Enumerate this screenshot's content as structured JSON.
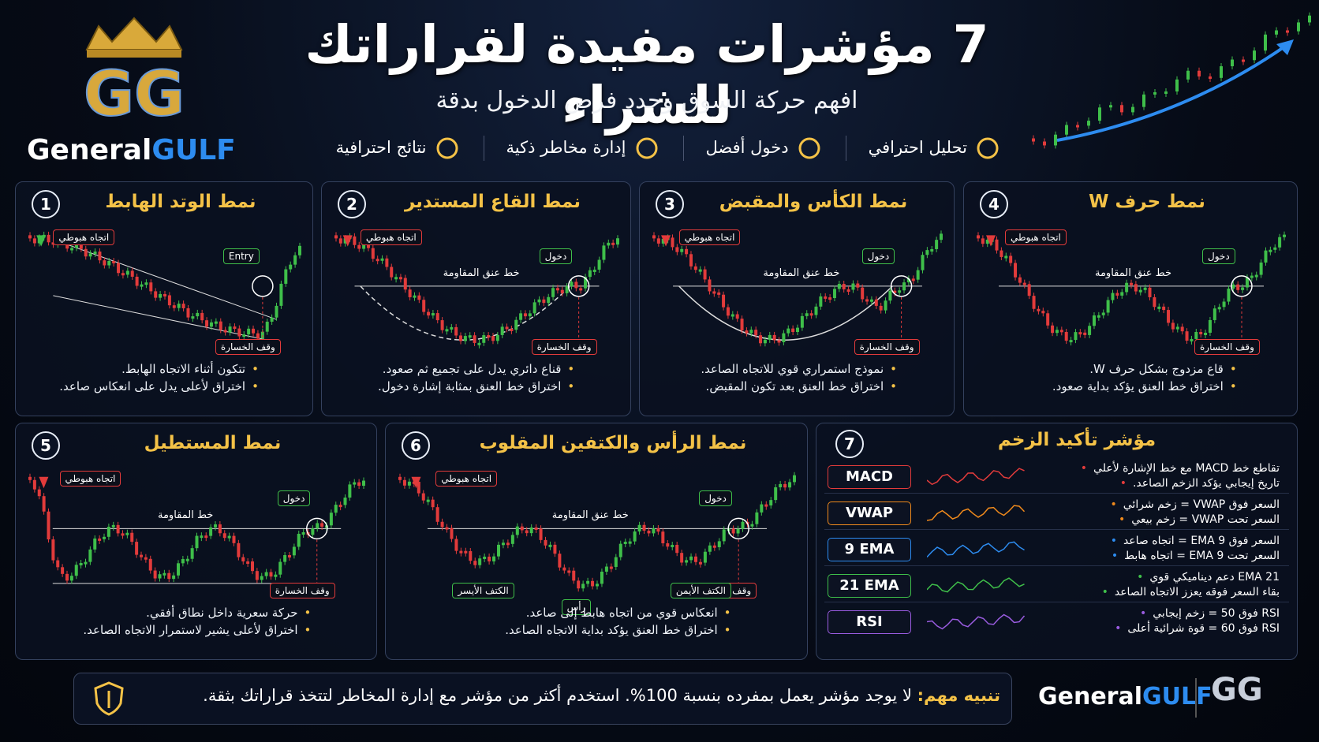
{
  "header": {
    "logo": "GG",
    "brand_a": "General",
    "brand_b": "GULF",
    "title": "7 مؤشرات مفيدة لقراراتك للشراء",
    "subtitle": "افهم حركة السوق وحدد فرص الدخول بدقة",
    "features": [
      "تحليل احترافي",
      "دخول أفضل",
      "إدارة مخاطر ذكية",
      "نتائج احترافية"
    ]
  },
  "patterns": [
    {
      "number": "1",
      "title": "نمط الوتد الهابط",
      "trend": "اتجاه هبوطي",
      "entry": "Entry",
      "stop": "وقف الخسارة",
      "bullets": [
        "تتكون أثناء الاتجاه الهابط.",
        "اختراق لأعلى يدل على انعكاس صاعد."
      ]
    },
    {
      "number": "2",
      "title": "نمط القاع المستدير",
      "trend": "اتجاه هبوطي",
      "neck": "خط عنق المقاومة",
      "entry": "دخول",
      "stop": "وقف الخسارة",
      "bullets": [
        "قناع دائري يدل على تجميع ثم صعود.",
        "اختراق خط العنق بمثابة إشارة دخول."
      ]
    },
    {
      "number": "3",
      "title": "نمط الكأس والمقبض",
      "trend": "اتجاه هبوطي",
      "neck": "خط عنق المقاومة",
      "entry": "دخول",
      "stop": "وقف الخسارة",
      "bullets": [
        "نموذج استمراري قوي للاتجاه الصاعد.",
        "اختراق خط العنق بعد تكون المقبض."
      ]
    },
    {
      "number": "4",
      "title": "نمط حرف W",
      "trend": "اتجاه هبوطي",
      "neck": "خط عنق المقاومة",
      "entry": "دخول",
      "stop": "وقف الخسارة",
      "bullets": [
        "قاع مزدوج بشكل حرف W.",
        "اختراق خط العنق يؤكد بداية صعود."
      ]
    },
    {
      "number": "5",
      "title": "نمط المستطيل",
      "trend": "اتجاه هبوطي",
      "neck": "خط المقاومة",
      "entry": "دخول",
      "stop": "وقف الخسارة",
      "bullets": [
        "حركة سعرية داخل نطاق أفقي.",
        "اختراق لأعلى يشير لاستمرار الاتجاه الصاعد."
      ]
    },
    {
      "number": "6",
      "title": "نمط الرأس والكتفين المقلوب",
      "trend": "اتجاه هبوطي",
      "neck": "خط عنق المقاومة",
      "entry": "دخول",
      "stop": "وقف الخسارة",
      "shoulders": [
        "الكتف الأيسر",
        "رأس",
        "الكتف الأيمن"
      ],
      "bullets": [
        "انعكاس قوي من اتجاه هابط إلى صاعد.",
        "اختراق خط العنق يؤكد بداية الاتجاه الصاعد."
      ]
    }
  ],
  "momentum": {
    "number": "7",
    "title": "مؤشر تأكيد الزخم",
    "indicators": [
      {
        "name": "MACD",
        "lines": [
          "تقاطع خط MACD مع خط الإشارة لأعلي",
          "تاريخ إيجابي يؤكد الزخم الصاعد."
        ]
      },
      {
        "name": "VWAP",
        "lines": [
          "السعر فوق VWAP = زخم شرائي",
          "السعر تحت VWAP = زخم بيعي"
        ]
      },
      {
        "name": "9 EMA",
        "lines": [
          "السعر فوق EMA 9 = اتجاه صاعد",
          "السعر تحت EMA 9 = اتجاه هابط"
        ]
      },
      {
        "name": "21 EMA",
        "lines": [
          "EMA 21 دعم ديناميكي قوي",
          "بقاء السعر فوقه يعزز الاتجاه الصاعد"
        ]
      },
      {
        "name": "RSI",
        "lines": [
          "RSI فوق 50 = زخم إيجابي",
          "RSI فوق 60 = قوة شرائية أعلى"
        ]
      }
    ]
  },
  "footer": {
    "label": "تنبيه مهم:",
    "text": "لا يوجد مؤشر يعمل بمفرده بنسبة 100%. استخدم أكثر من مؤشر مع إدارة المخاطر لتتخذ قراراتك بثقة.",
    "brand_a": "General",
    "brand_b": "GULF",
    "logo": "GG"
  }
}
